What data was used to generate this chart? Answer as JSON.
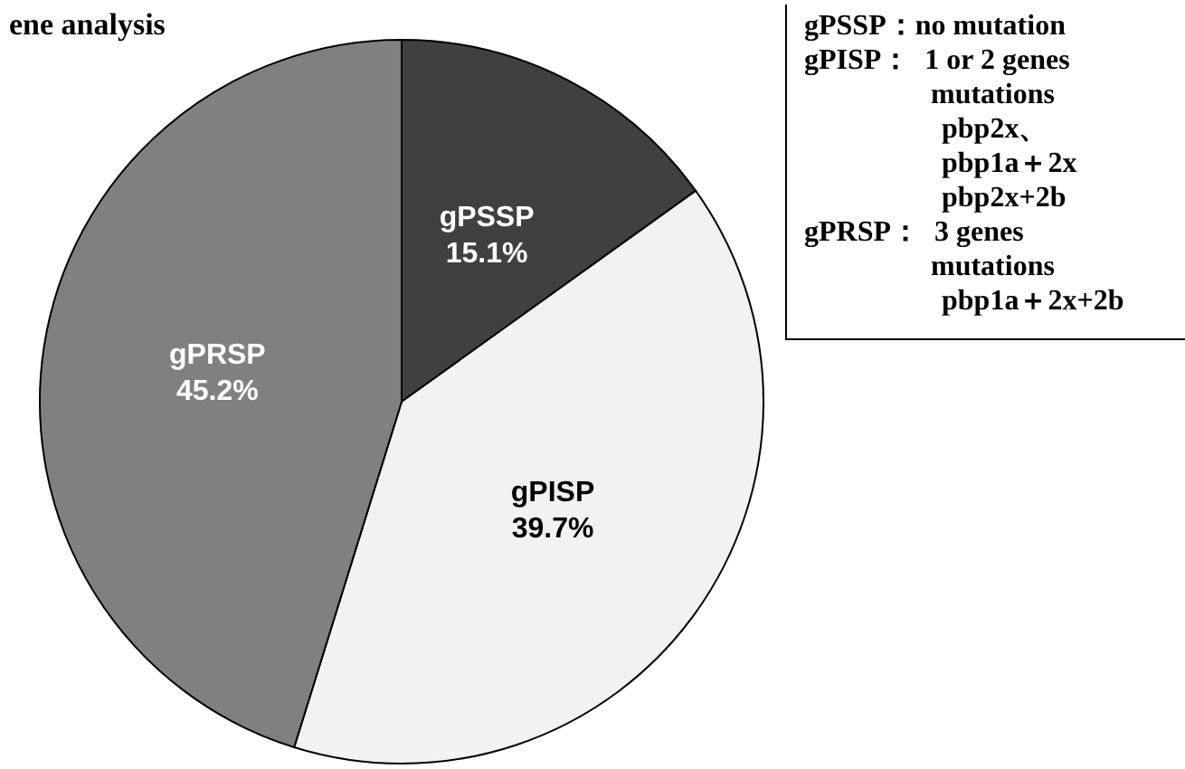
{
  "chart_data": {
    "type": "pie",
    "title": "ene analysis",
    "categories": [
      "gPSSP",
      "gPISP",
      "gPRSP"
    ],
    "values": [
      15.1,
      39.7,
      45.2
    ],
    "colors": [
      "#404040",
      "#f2f2f2",
      "#808080"
    ],
    "value_labels": [
      "15.1%",
      "39.7%",
      "45.2%"
    ],
    "annotations": [
      "gPSSP：no mutation",
      "gPISP：  1 or 2 genes",
      "mutations",
      "pbp2x、",
      "pbp1a＋2x",
      "pbp2x+2b",
      "gPRSP：  3 genes",
      "mutations",
      "pbp1a＋2x+2b"
    ]
  }
}
